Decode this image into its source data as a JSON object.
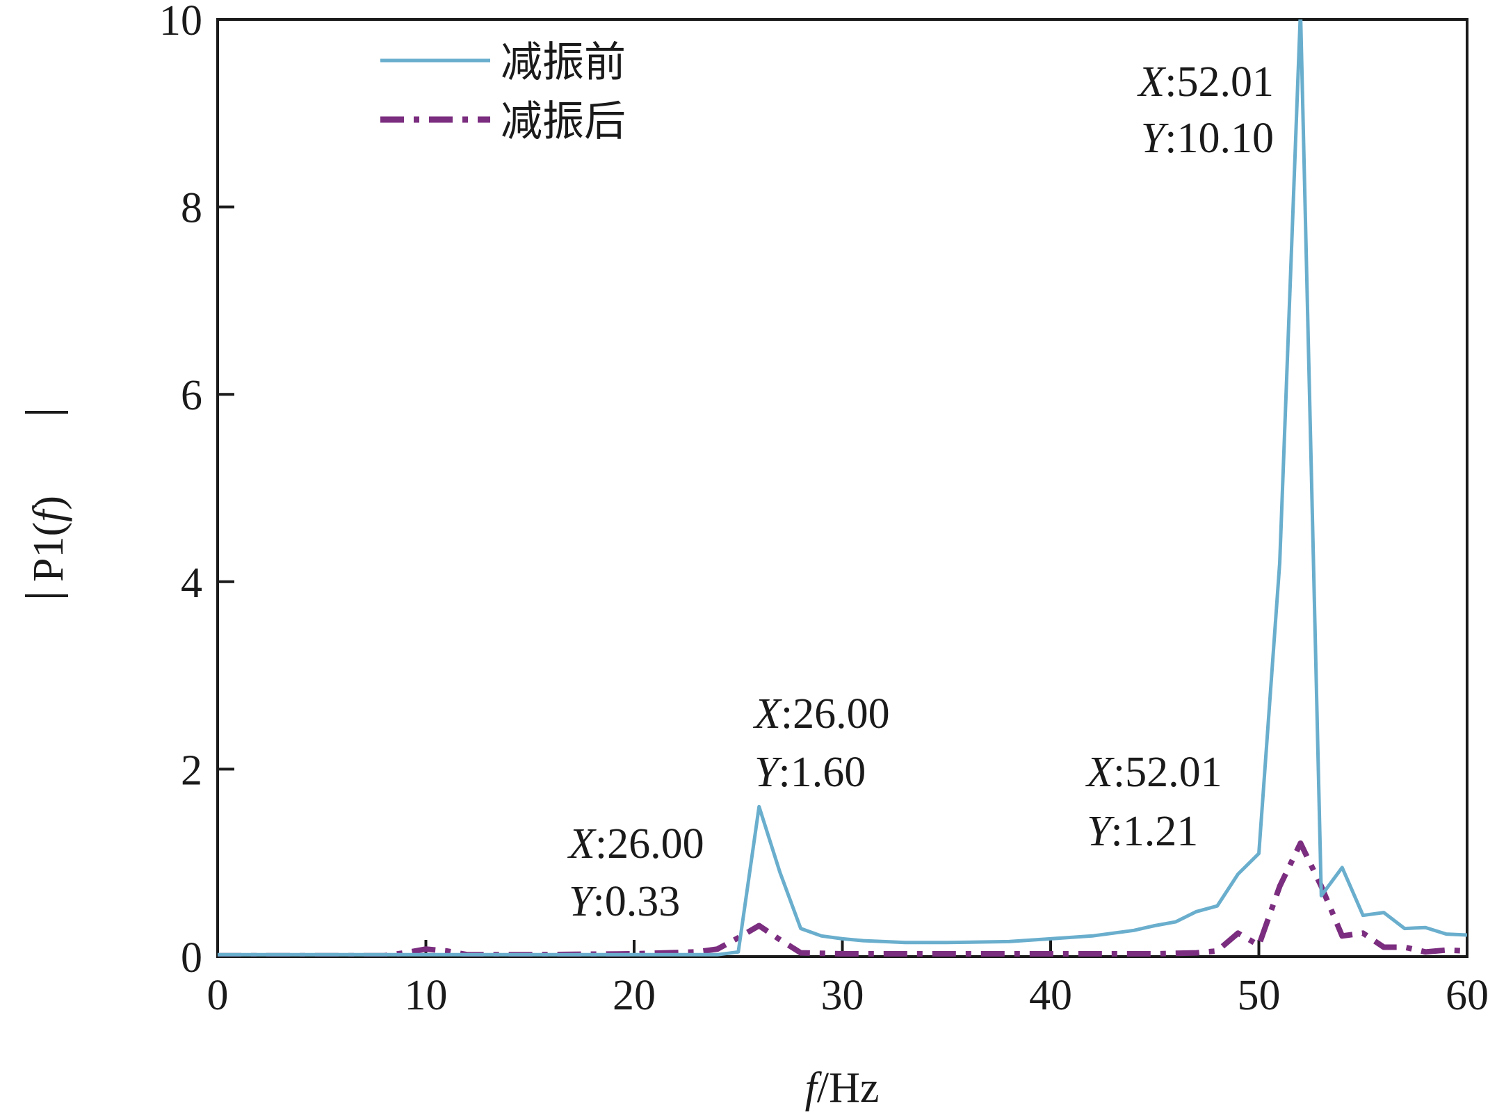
{
  "chart_data": {
    "type": "line",
    "xlabel_italic": "f",
    "xlabel_rest": "/Hz",
    "ylabel_text": "P1(",
    "ylabel_italic": "f",
    "ylabel_close": ")",
    "xlim": [
      0,
      60
    ],
    "ylim": [
      0,
      10
    ],
    "xticks": [
      0,
      10,
      20,
      30,
      40,
      50,
      60
    ],
    "yticks": [
      0,
      2,
      4,
      6,
      8,
      10
    ],
    "grid": false,
    "legend_position": "top-left",
    "series": [
      {
        "name": "减振前",
        "color": "#6aaecd",
        "dash": "solid",
        "x": [
          0,
          5,
          10,
          15,
          20,
          24,
          25,
          26,
          27,
          28,
          29,
          30,
          31,
          32,
          33,
          35,
          38,
          40,
          42,
          43,
          44,
          45,
          46,
          47,
          48,
          49,
          50,
          51,
          52,
          53,
          54,
          55,
          56,
          57,
          58,
          59,
          60
        ],
        "y": [
          0.02,
          0.02,
          0.02,
          0.02,
          0.02,
          0.02,
          0.05,
          1.6,
          0.9,
          0.3,
          0.22,
          0.19,
          0.17,
          0.16,
          0.15,
          0.15,
          0.16,
          0.19,
          0.22,
          0.25,
          0.28,
          0.33,
          0.37,
          0.48,
          0.54,
          0.88,
          1.1,
          4.2,
          10.1,
          0.65,
          0.95,
          0.44,
          0.47,
          0.3,
          0.31,
          0.24,
          0.23
        ]
      },
      {
        "name": "减振后",
        "color": "#7b2d7f",
        "dash": "dashdot",
        "x": [
          0,
          5,
          8,
          9,
          10,
          11,
          12,
          15,
          20,
          23,
          24,
          25,
          26,
          27,
          28,
          30,
          35,
          40,
          45,
          47,
          48,
          49,
          50,
          51,
          52,
          53,
          54,
          55,
          56,
          57,
          58,
          59,
          60
        ],
        "y": [
          0.01,
          0.01,
          0.01,
          0.04,
          0.08,
          0.06,
          0.02,
          0.02,
          0.03,
          0.05,
          0.08,
          0.2,
          0.33,
          0.18,
          0.04,
          0.03,
          0.03,
          0.03,
          0.03,
          0.04,
          0.06,
          0.25,
          0.12,
          0.75,
          1.21,
          0.75,
          0.22,
          0.25,
          0.1,
          0.1,
          0.05,
          0.07,
          0.06
        ]
      }
    ],
    "annotations": [
      {
        "x_label": "X",
        "x_value": ":52.01",
        "y_label": "Y",
        "y_value": ":10.10"
      },
      {
        "x_label": "X",
        "x_value": ":26.00",
        "y_label": "Y",
        "y_value": ":1.60"
      },
      {
        "x_label": "X",
        "x_value": ":26.00",
        "y_label": "Y",
        "y_value": ":0.33"
      },
      {
        "x_label": "X",
        "x_value": ":52.01",
        "y_label": "Y",
        "y_value": ":1.21"
      }
    ]
  }
}
